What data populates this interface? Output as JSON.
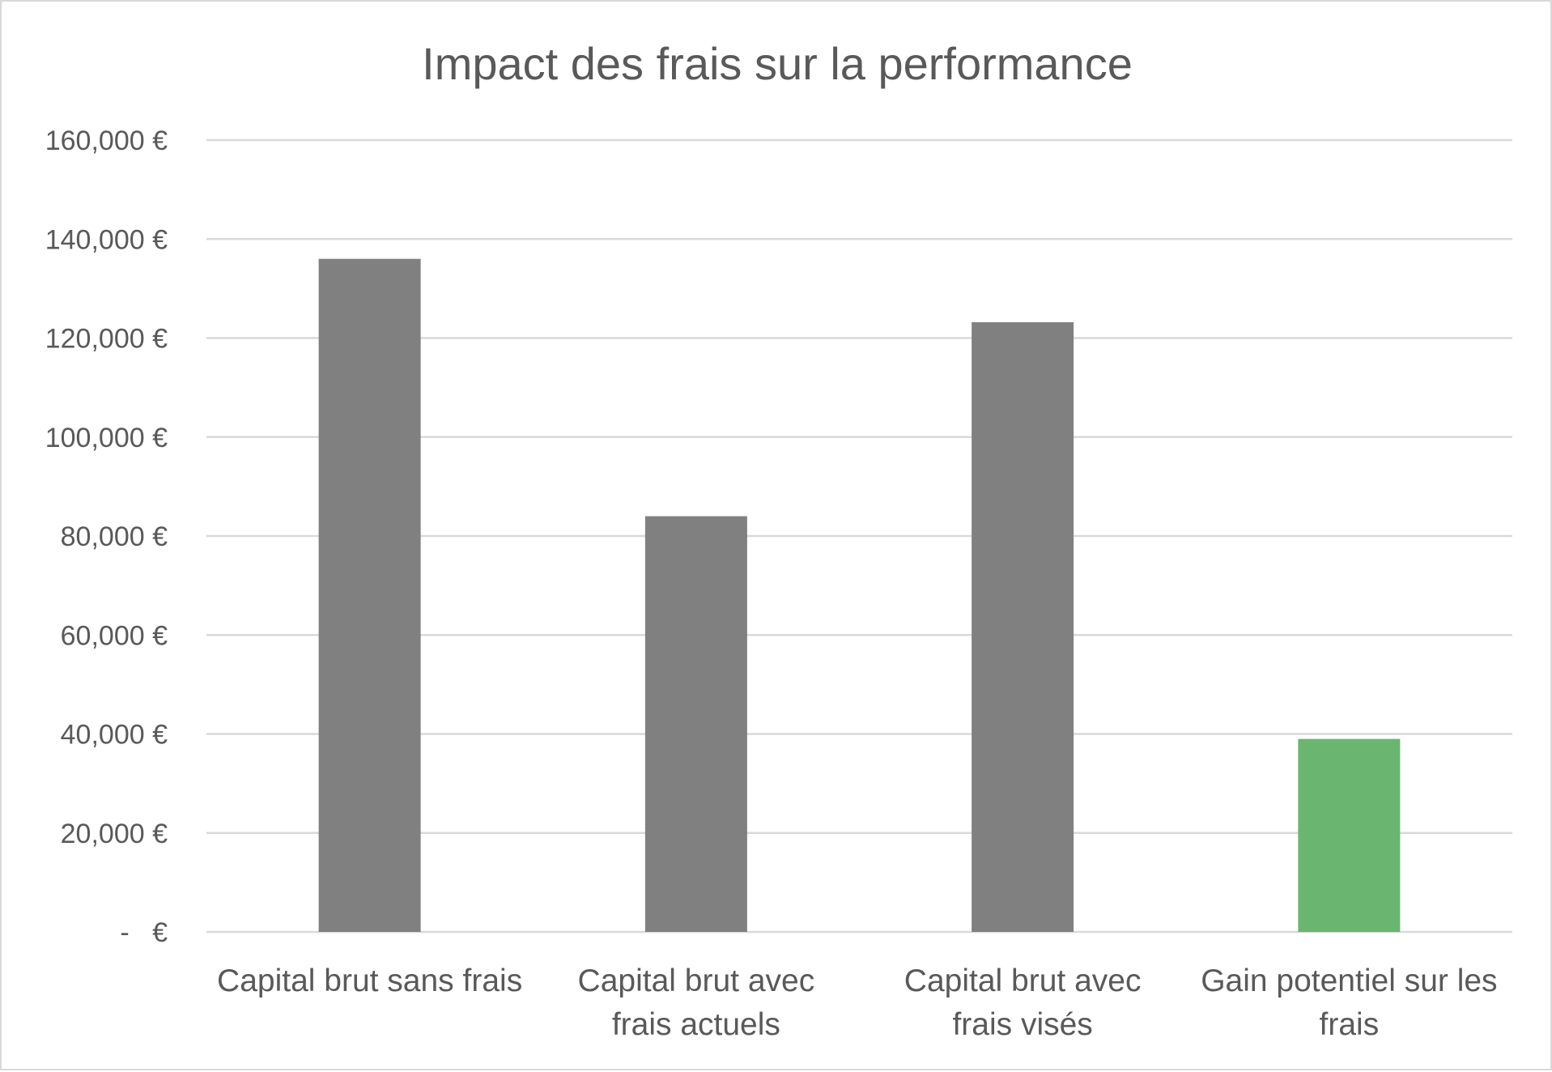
{
  "chart_data": {
    "type": "bar",
    "title": "Impact des frais sur la performance",
    "xlabel": "",
    "ylabel": "",
    "categories": [
      [
        "Capital brut sans frais"
      ],
      [
        "Capital brut avec",
        "frais actuels"
      ],
      [
        "Capital brut avec",
        "frais visés"
      ],
      [
        "Gain potentiel sur les",
        "frais"
      ]
    ],
    "values": [
      136000,
      84000,
      123200,
      39000
    ],
    "bar_colors": [
      "#808080",
      "#808080",
      "#808080",
      "#6ab56f"
    ],
    "ylim": [
      0,
      160000
    ],
    "yticks": [
      0,
      20000,
      40000,
      60000,
      80000,
      100000,
      120000,
      140000,
      160000
    ],
    "ytick_labels": [
      "-   €",
      "20,000 €",
      "40,000 €",
      "60,000 €",
      "80,000 €",
      "100,000 €",
      "120,000 €",
      "140,000 €",
      "160,000 €"
    ],
    "grid": true,
    "legend": "none"
  }
}
